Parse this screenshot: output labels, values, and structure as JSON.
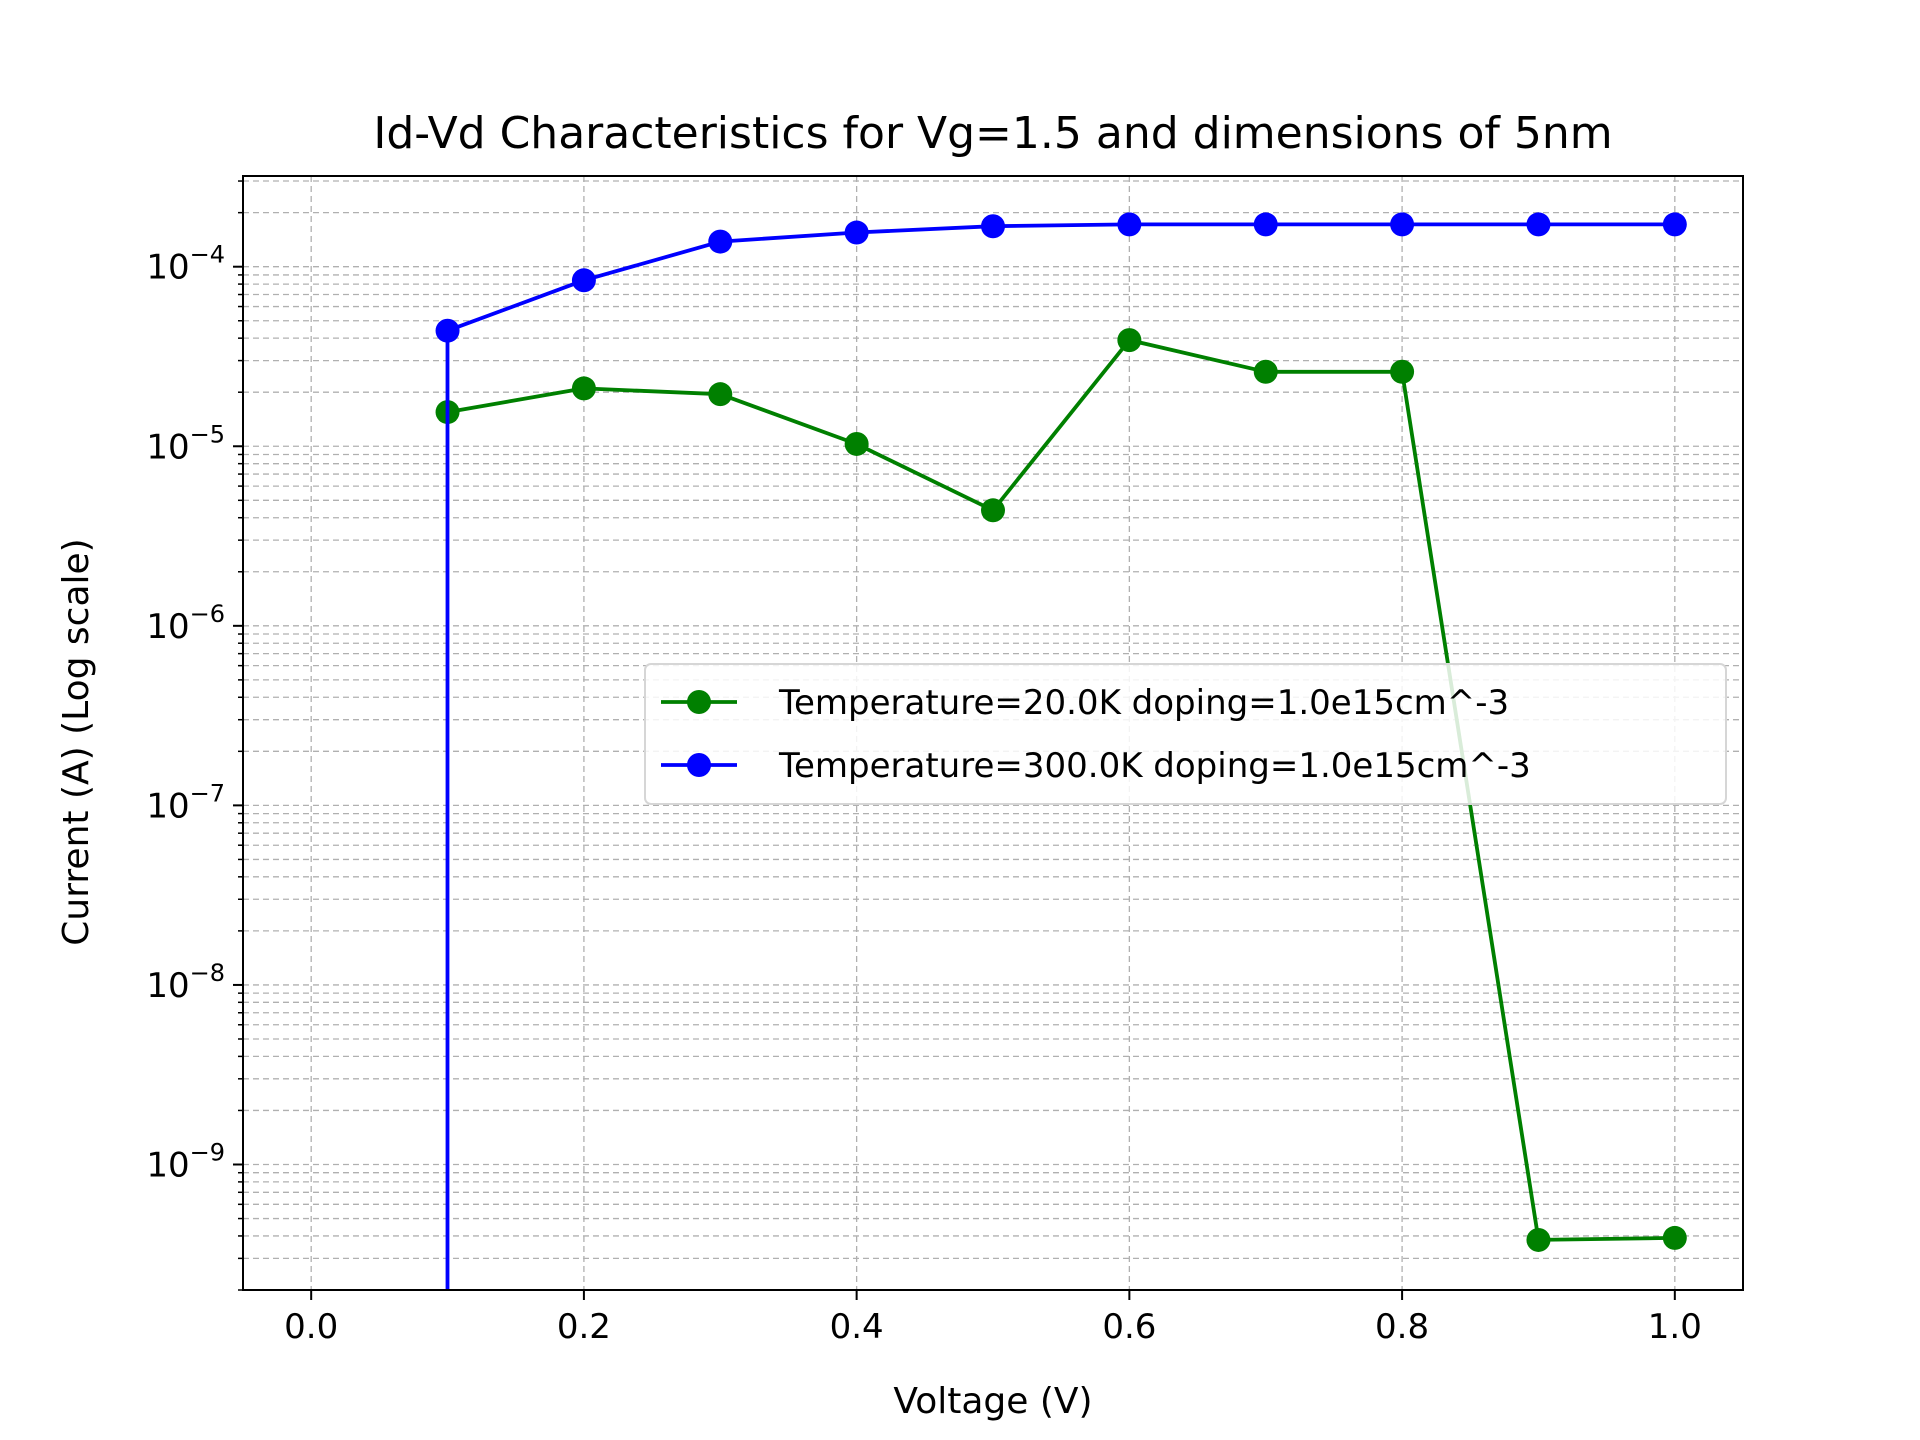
{
  "chart_data": {
    "type": "line",
    "title": "Id-Vd Characteristics for Vg=1.5 and dimensions of 5nm",
    "xlabel": "Voltage (V)",
    "ylabel": "Current (A) (Log scale)",
    "xlim": [
      -0.05,
      1.05
    ],
    "ylim": [
      2e-10,
      0.00032
    ],
    "yscale": "log",
    "grid": true,
    "grid_minor": true,
    "legend_position": "center-right",
    "x_ticks": [
      0.0,
      0.2,
      0.4,
      0.6,
      0.8,
      1.0
    ],
    "x_tick_labels": [
      "0.0",
      "0.2",
      "0.4",
      "0.6",
      "0.8",
      "1.0"
    ],
    "y_ticks": [
      {
        "value": 0.0001,
        "base": "10",
        "exp": "−4"
      },
      {
        "value": 1e-05,
        "base": "10",
        "exp": "−5"
      },
      {
        "value": 1e-06,
        "base": "10",
        "exp": "−6"
      },
      {
        "value": 1e-07,
        "base": "10",
        "exp": "−7"
      },
      {
        "value": 1e-08,
        "base": "10",
        "exp": "−8"
      },
      {
        "value": 1e-09,
        "base": "10",
        "exp": "−9"
      }
    ],
    "series": [
      {
        "name": "Temperature=20.0K doping=1.0e15cm^-3",
        "color": "#008000",
        "x": [
          0.1,
          0.2,
          0.3,
          0.4,
          0.5,
          0.6,
          0.7,
          0.8,
          0.9,
          1.0
        ],
        "y": [
          1.55e-05,
          2.1e-05,
          1.95e-05,
          1.03e-05,
          4.4e-06,
          3.9e-05,
          2.6e-05,
          2.6e-05,
          3.8e-10,
          3.9e-10
        ]
      },
      {
        "name": "Temperature=300.0K doping=1.0e15cm^-3",
        "color": "#0000ff",
        "x": [
          0.1,
          0.2,
          0.3,
          0.4,
          0.5,
          0.6,
          0.7,
          0.8,
          0.9,
          1.0
        ],
        "y": [
          4.4e-05,
          8.4e-05,
          0.000138,
          0.000155,
          0.000168,
          0.000172,
          0.000172,
          0.000172,
          0.000172,
          0.000172
        ],
        "drop_to_bottom_at_x": 0.1
      }
    ]
  }
}
